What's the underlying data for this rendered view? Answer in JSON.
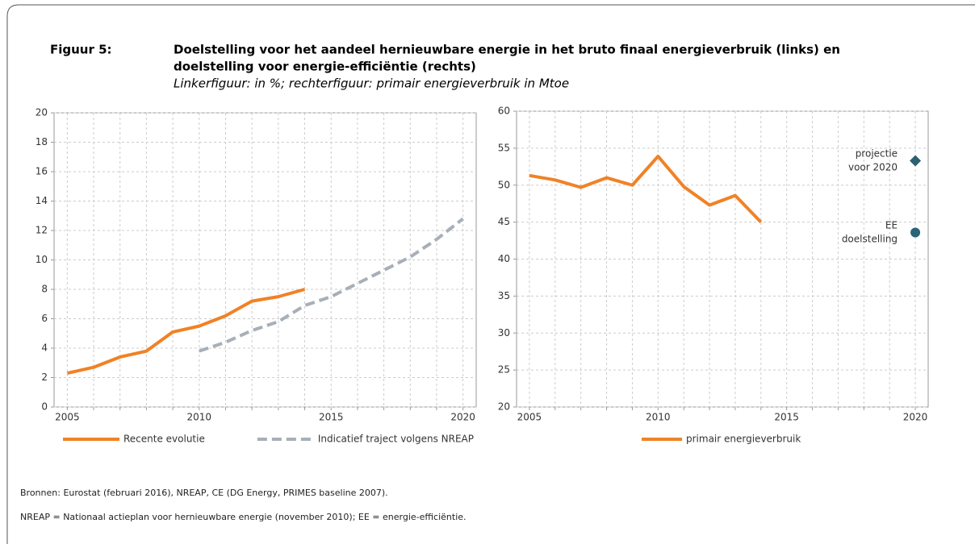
{
  "figure": {
    "label": "Figuur 5:",
    "title": [
      "Doelstelling voor het aandeel hernieuwbare energie in het bruto finaal energieverbruik (links) en",
      "doelstelling voor energie-efficiëntie (rechts)"
    ],
    "subtitle": "Linkerfiguur: in %; rechterfiguur: primair energieverbruik in Mtoe"
  },
  "chart_data": [
    {
      "type": "line",
      "x": [
        2005,
        2006,
        2007,
        2008,
        2009,
        2010,
        2011,
        2012,
        2013,
        2014,
        2015,
        2016,
        2017,
        2018,
        2019,
        2020
      ],
      "xlim": [
        2004.5,
        2020.5
      ],
      "xticks": [
        2005,
        2010,
        2015,
        2020
      ],
      "ylim": [
        0,
        20
      ],
      "yticks": [
        0,
        2,
        4,
        6,
        8,
        10,
        12,
        14,
        16,
        18,
        20
      ],
      "grid": true,
      "series": [
        {
          "name": "Recente evolutie",
          "color": "#f08226",
          "dash": false,
          "values": [
            2.3,
            2.7,
            3.4,
            3.8,
            5.1,
            5.5,
            6.2,
            7.2,
            7.5,
            8.0,
            null,
            null,
            null,
            null,
            null,
            null
          ]
        },
        {
          "name": "Indicatief traject volgens NREAP",
          "color": "#a8afb8",
          "dash": true,
          "values": [
            null,
            null,
            null,
            null,
            null,
            3.8,
            4.4,
            5.2,
            5.8,
            6.9,
            7.5,
            8.4,
            9.3,
            10.2,
            11.4,
            12.8
          ]
        }
      ]
    },
    {
      "type": "line",
      "x": [
        2005,
        2006,
        2007,
        2008,
        2009,
        2010,
        2011,
        2012,
        2013,
        2014,
        2015,
        2016,
        2017,
        2018,
        2019,
        2020
      ],
      "xlim": [
        2004.5,
        2020.5
      ],
      "xticks": [
        2005,
        2010,
        2015,
        2020
      ],
      "ylim": [
        20,
        60
      ],
      "yticks": [
        20,
        25,
        30,
        35,
        40,
        45,
        50,
        55,
        60
      ],
      "grid": true,
      "series": [
        {
          "name": "primair energieverbruik",
          "color": "#f08226",
          "dash": false,
          "values": [
            51.3,
            50.7,
            49.7,
            51.0,
            50.0,
            53.9,
            49.8,
            47.3,
            48.6,
            45.0,
            null,
            null,
            null,
            null,
            null,
            null
          ]
        }
      ],
      "points": [
        {
          "label": [
            "projectie",
            "voor 2020"
          ],
          "x": 2020,
          "value": 53.3,
          "marker": "diamond",
          "color": "#2e5f72"
        },
        {
          "label": [
            "EE",
            "doelstelling"
          ],
          "x": 2020,
          "value": 43.6,
          "marker": "circle",
          "color": "#2a6478"
        }
      ]
    }
  ],
  "notes": [
    "Bronnen: Eurostat (februari 2016), NREAP, CE (DG Energy, PRIMES baseline 2007).",
    "NREAP = Nationaal actieplan voor hernieuwbare energie (november 2010); EE = energie-efficiëntie."
  ]
}
